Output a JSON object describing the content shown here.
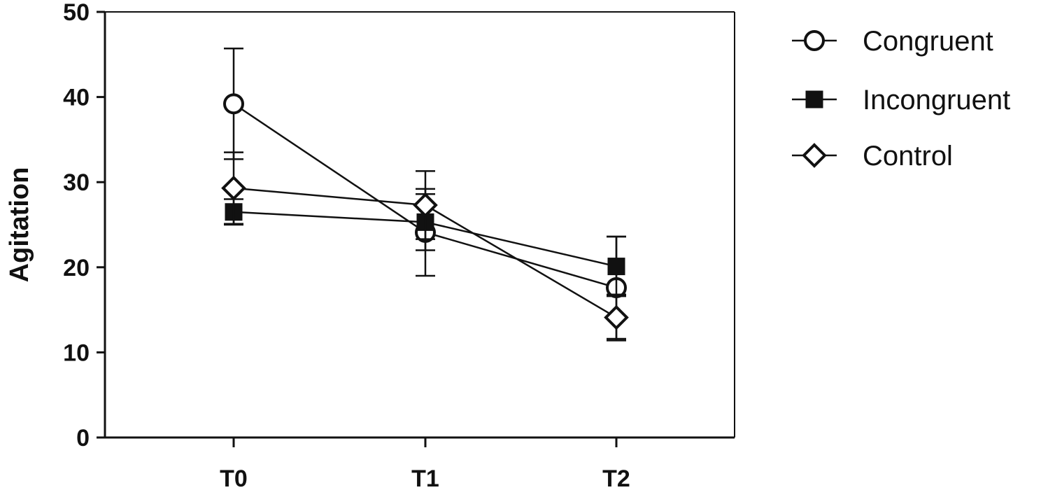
{
  "chart_data": {
    "type": "line",
    "title": "",
    "xlabel": "",
    "ylabel": "Agitation",
    "ylim": [
      0,
      50
    ],
    "yticks": [
      0,
      10,
      20,
      30,
      40,
      50
    ],
    "categories": [
      "T0",
      "T1",
      "T2"
    ],
    "grid": false,
    "legend_position": "right",
    "series": [
      {
        "name": "Congruent",
        "marker": "open-circle",
        "values": [
          39.2,
          24.1,
          17.6
        ],
        "error": [
          6.5,
          5.1,
          6.0
        ]
      },
      {
        "name": "Incongruent",
        "marker": "filled-square",
        "values": [
          26.5,
          25.3,
          20.1
        ],
        "error": [
          1.5,
          3.3,
          3.5
        ]
      },
      {
        "name": "Control",
        "marker": "open-diamond",
        "values": [
          29.3,
          27.3,
          14.1
        ],
        "error": [
          4.2,
          4.0,
          2.7
        ]
      }
    ],
    "colors": {
      "line": "#111111",
      "marker_fill_open": "#ffffff",
      "marker_fill_solid": "#111111"
    }
  }
}
